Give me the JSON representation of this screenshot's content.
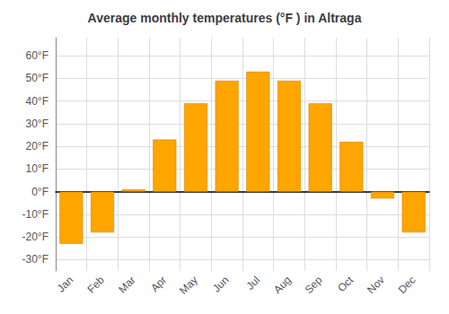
{
  "chart_data": {
    "type": "bar",
    "title": "Average monthly temperatures (°F ) in Altraga",
    "categories": [
      "Jan",
      "Feb",
      "Mar",
      "Apr",
      "May",
      "Jun",
      "Jul",
      "Aug",
      "Sep",
      "Oct",
      "Nov",
      "Dec"
    ],
    "values": [
      -23,
      -18,
      1,
      23,
      39,
      49,
      53,
      49,
      39,
      22,
      -3,
      -18
    ],
    "color": "#FFA500",
    "ylim": [
      -35,
      68
    ],
    "yticks": [
      {
        "value": -30,
        "label": "-30°F"
      },
      {
        "value": -20,
        "label": "-20°F"
      },
      {
        "value": -10,
        "label": "-10°F"
      },
      {
        "value": 0,
        "label": "0°F"
      },
      {
        "value": 10,
        "label": "10°F"
      },
      {
        "value": 20,
        "label": "20°F"
      },
      {
        "value": 30,
        "label": "30°F"
      },
      {
        "value": 40,
        "label": "40°F"
      },
      {
        "value": 50,
        "label": "50°F"
      },
      {
        "value": 60,
        "label": "60°F"
      }
    ],
    "grid": true
  }
}
